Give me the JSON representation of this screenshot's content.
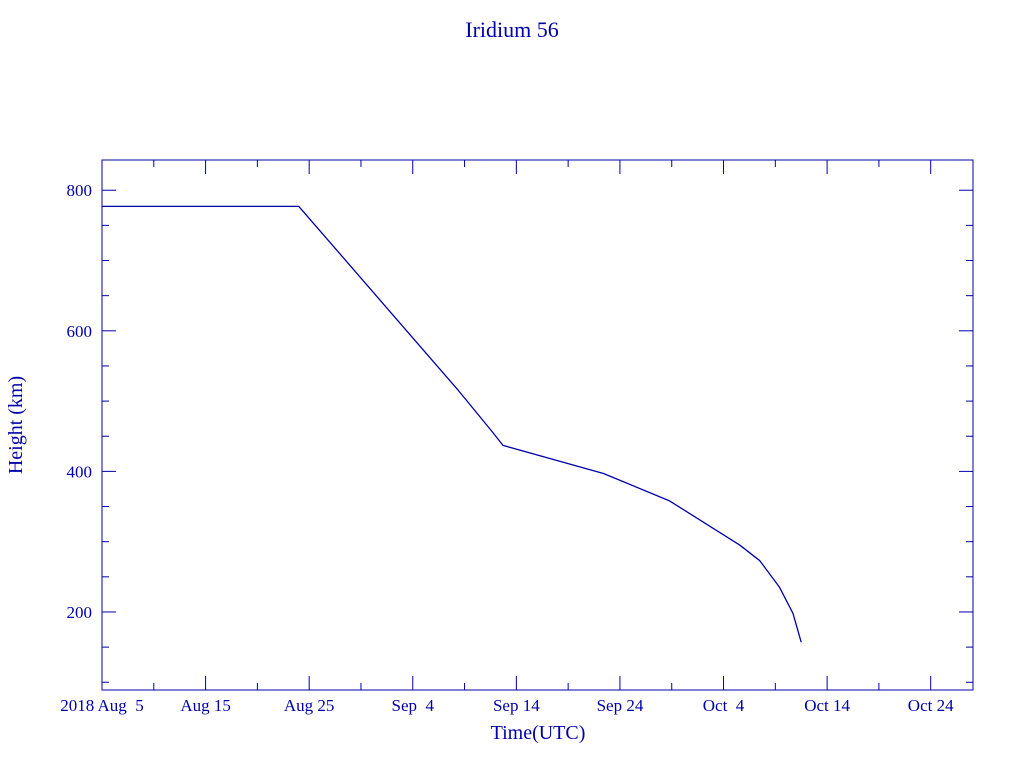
{
  "chart_data": {
    "type": "line",
    "title": "Iridium 56",
    "xlabel": "Time(UTC)",
    "ylabel": "Height (km)",
    "xlim": [
      "2018-08-05T00:00",
      "2018-10-28T02:00"
    ],
    "ylim": [
      89,
      843
    ],
    "grid": false,
    "color": "#0000a8",
    "x_tick_labels": [
      {
        "date": "2018-08-05",
        "label": "2018 Aug  5"
      },
      {
        "date": "2018-08-15",
        "label": "Aug 15"
      },
      {
        "date": "2018-08-25",
        "label": "Aug 25"
      },
      {
        "date": "2018-09-04",
        "label": "Sep  4"
      },
      {
        "date": "2018-09-14",
        "label": "Sep 14"
      },
      {
        "date": "2018-09-24",
        "label": "Sep 24"
      },
      {
        "date": "2018-10-04",
        "label": "Oct  4"
      },
      {
        "date": "2018-10-14",
        "label": "Oct 14"
      },
      {
        "date": "2018-10-24",
        "label": "Oct 24"
      }
    ],
    "y_ticks": [
      200,
      400,
      600,
      800
    ],
    "series": [
      {
        "x": [
          "2018-08-05T00:00",
          "2018-08-24T00:00",
          "2018-09-08T10:00",
          "2018-09-11T14:00",
          "2018-09-12T17:00",
          "2018-09-22T10:00",
          "2018-09-28T19:00",
          "2018-10-05T14:00",
          "2018-10-07T12:00",
          "2018-10-09T10:00",
          "2018-10-10T17:00",
          "2018-10-11T12:00"
        ],
        "y": [
          777,
          777,
          515,
          458,
          437,
          397,
          358,
          295,
          273,
          235,
          198,
          157
        ]
      }
    ]
  }
}
